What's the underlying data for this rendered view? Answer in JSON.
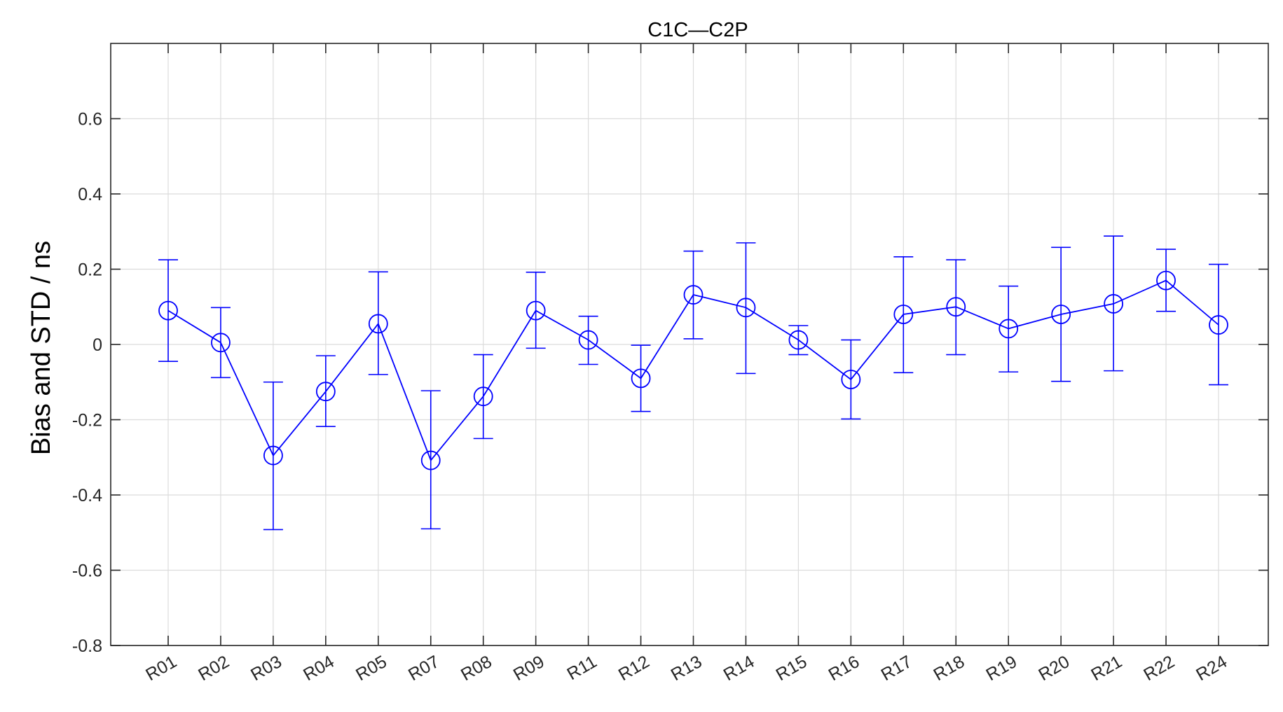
{
  "chart_data": {
    "type": "line",
    "title": "C1C—C2P",
    "xlabel": "",
    "ylabel": "Bias and STD / ns",
    "categories": [
      "R01",
      "R02",
      "R03",
      "R04",
      "R05",
      "R07",
      "R08",
      "R09",
      "R11",
      "R12",
      "R13",
      "R14",
      "R15",
      "R16",
      "R17",
      "R18",
      "R19",
      "R20",
      "R21",
      "R22",
      "R24"
    ],
    "series": [
      {
        "values": [
          0.09,
          0.005,
          -0.295,
          -0.125,
          0.055,
          -0.308,
          -0.138,
          0.09,
          0.012,
          -0.09,
          0.132,
          0.098,
          0.012,
          -0.093,
          0.08,
          0.1,
          0.042,
          0.08,
          0.108,
          0.17,
          0.052
        ],
        "error_low": [
          -0.045,
          -0.088,
          -0.492,
          -0.218,
          -0.08,
          -0.49,
          -0.25,
          -0.01,
          -0.053,
          -0.178,
          0.015,
          -0.077,
          -0.027,
          -0.198,
          -0.075,
          -0.027,
          -0.073,
          -0.098,
          -0.07,
          0.088,
          -0.107
        ],
        "error_high": [
          0.225,
          0.098,
          -0.1,
          -0.03,
          0.193,
          -0.123,
          -0.027,
          0.192,
          0.075,
          -0.002,
          0.248,
          0.27,
          0.05,
          0.012,
          0.233,
          0.225,
          0.155,
          0.258,
          0.288,
          0.253,
          0.213
        ],
        "color": "#0000ff",
        "marker": "circle"
      }
    ],
    "ylim": [
      -0.8,
      0.8
    ],
    "yticks": [
      -0.8,
      -0.6,
      -0.4,
      -0.2,
      0,
      0.2,
      0.4,
      0.6
    ],
    "ytick_labels": [
      "-0.8",
      "-0.6",
      "-0.4",
      "-0.2",
      "0",
      "0.2",
      "0.4",
      "0.6"
    ],
    "grid": true,
    "colors": {
      "series": "#0000ff",
      "axis": "#262626",
      "grid": "#dcdcdc"
    }
  }
}
